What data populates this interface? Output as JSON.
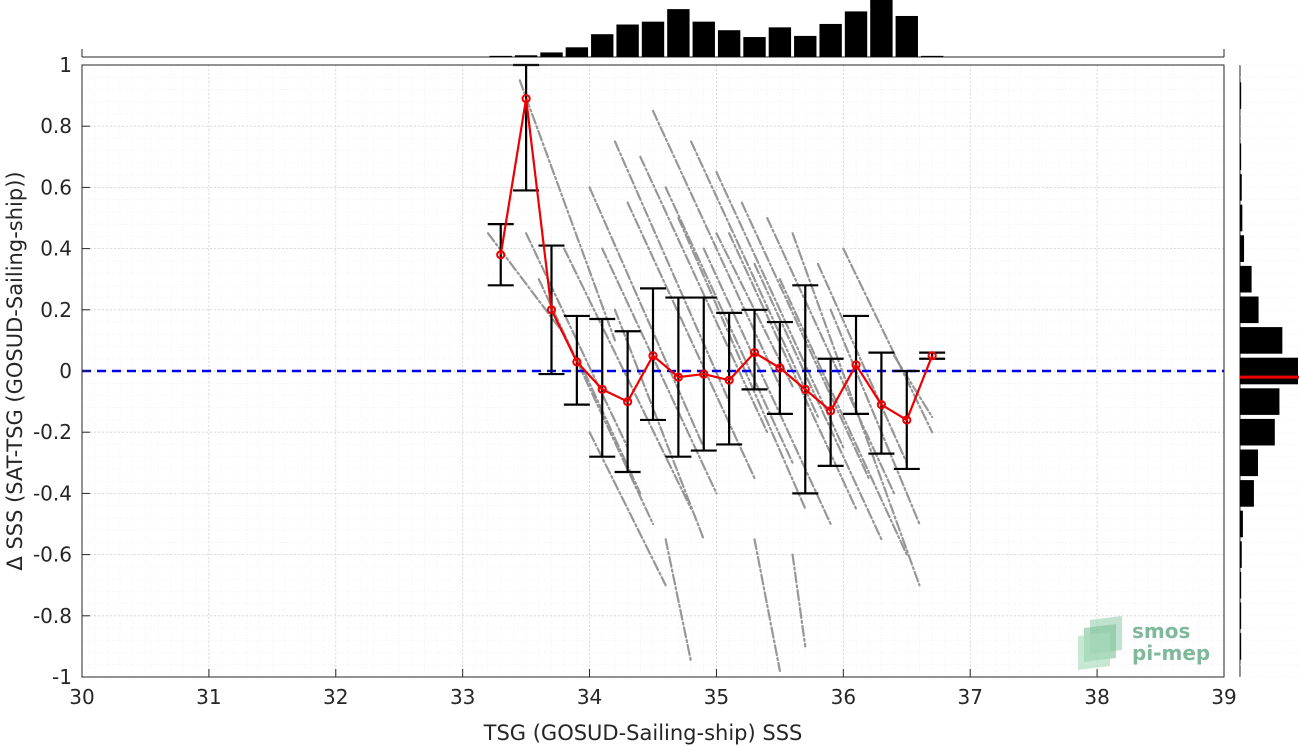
{
  "chart_data": {
    "type": "scatter",
    "xlabel": "TSG (GOSUD-Sailing-ship) SSS",
    "ylabel": "Δ SSS (SAT-TSG (GOSUD-Sailing-ship))",
    "xlim": [
      30,
      39
    ],
    "ylim": [
      -1,
      1
    ],
    "x_ticks": [
      "30",
      "31",
      "32",
      "33",
      "34",
      "35",
      "36",
      "37",
      "38",
      "39"
    ],
    "y_ticks": [
      "1",
      "0.8",
      "0.6",
      "0.4",
      "0.2",
      "0",
      "-0.2",
      "-0.4",
      "-0.6",
      "-0.8",
      "-1"
    ],
    "grid": true,
    "zero_line": {
      "y": 0,
      "style": "dashed",
      "color": "#0000ee"
    },
    "colors": {
      "scatter": "#8c8c8c",
      "mean_line": "#ee0000",
      "error_bars": "#000000",
      "histogram": "#000000",
      "hist_mean": "#ee0000",
      "logo_text": "#7fb89a"
    },
    "binned_mean": {
      "x": [
        33.3,
        33.5,
        33.7,
        33.9,
        34.1,
        34.3,
        34.5,
        34.7,
        34.9,
        35.1,
        35.3,
        35.5,
        35.7,
        35.9,
        36.1,
        36.3,
        36.5,
        36.7
      ],
      "mean": [
        0.38,
        0.89,
        0.2,
        0.03,
        -0.06,
        -0.1,
        0.05,
        -0.02,
        -0.01,
        -0.03,
        0.06,
        0.01,
        -0.06,
        -0.13,
        0.02,
        -0.11,
        -0.16,
        0.05
      ],
      "lower": [
        0.28,
        0.59,
        -0.01,
        -0.11,
        -0.28,
        -0.33,
        -0.16,
        -0.28,
        -0.26,
        -0.24,
        -0.06,
        -0.14,
        -0.4,
        -0.31,
        -0.14,
        -0.27,
        -0.32,
        0.04
      ],
      "upper": [
        0.48,
        1.0,
        0.41,
        0.18,
        0.17,
        0.13,
        0.27,
        0.24,
        0.24,
        0.19,
        0.2,
        0.16,
        0.28,
        0.04,
        0.18,
        0.06,
        0.0,
        0.06
      ]
    },
    "scatter_tracks": [
      {
        "x0": 33.45,
        "y0": 0.95,
        "x1": 34.2,
        "y1": 0.1
      },
      {
        "x0": 33.2,
        "y0": 0.45,
        "x1": 33.8,
        "y1": 0.12
      },
      {
        "x0": 33.5,
        "y0": 0.45,
        "x1": 34.3,
        "y1": -0.25
      },
      {
        "x0": 33.6,
        "y0": 0.3,
        "x1": 34.5,
        "y1": -0.5
      },
      {
        "x0": 33.8,
        "y0": 0.4,
        "x1": 34.8,
        "y1": -0.45
      },
      {
        "x0": 34.0,
        "y0": 0.6,
        "x1": 34.9,
        "y1": -0.25
      },
      {
        "x0": 34.1,
        "y0": 0.4,
        "x1": 35.0,
        "y1": -0.4
      },
      {
        "x0": 34.2,
        "y0": 0.75,
        "x1": 35.1,
        "y1": -0.1
      },
      {
        "x0": 34.3,
        "y0": 0.55,
        "x1": 35.3,
        "y1": -0.35
      },
      {
        "x0": 34.4,
        "y0": 0.7,
        "x1": 35.4,
        "y1": -0.2
      },
      {
        "x0": 34.5,
        "y0": 0.85,
        "x1": 35.5,
        "y1": -0.05
      },
      {
        "x0": 34.6,
        "y0": 0.6,
        "x1": 35.6,
        "y1": -0.3
      },
      {
        "x0": 34.7,
        "y0": 0.5,
        "x1": 35.7,
        "y1": -0.45
      },
      {
        "x0": 34.8,
        "y0": 0.75,
        "x1": 35.8,
        "y1": -0.15
      },
      {
        "x0": 34.9,
        "y0": 0.4,
        "x1": 35.9,
        "y1": -0.5
      },
      {
        "x0": 35.0,
        "y0": 0.65,
        "x1": 36.0,
        "y1": -0.25
      },
      {
        "x0": 35.1,
        "y0": 0.45,
        "x1": 36.1,
        "y1": -0.45
      },
      {
        "x0": 35.2,
        "y0": 0.55,
        "x1": 36.2,
        "y1": -0.35
      },
      {
        "x0": 35.3,
        "y0": 0.35,
        "x1": 36.3,
        "y1": -0.55
      },
      {
        "x0": 35.4,
        "y0": 0.5,
        "x1": 36.4,
        "y1": -0.4
      },
      {
        "x0": 35.5,
        "y0": 0.3,
        "x1": 36.5,
        "y1": -0.6
      },
      {
        "x0": 35.6,
        "y0": 0.45,
        "x1": 36.6,
        "y1": -0.7
      },
      {
        "x0": 35.8,
        "y0": 0.35,
        "x1": 36.5,
        "y1": -0.3
      },
      {
        "x0": 35.9,
        "y0": 0.2,
        "x1": 36.6,
        "y1": -0.5
      },
      {
        "x0": 36.0,
        "y0": 0.4,
        "x1": 36.7,
        "y1": -0.2
      },
      {
        "x0": 33.9,
        "y0": 0.05,
        "x1": 34.4,
        "y1": -0.4
      },
      {
        "x0": 34.0,
        "y0": -0.2,
        "x1": 34.6,
        "y1": -0.7
      },
      {
        "x0": 34.6,
        "y0": -0.55,
        "x1": 34.8,
        "y1": -0.95
      },
      {
        "x0": 35.3,
        "y0": -0.55,
        "x1": 35.5,
        "y1": -0.98
      },
      {
        "x0": 35.6,
        "y0": -0.6,
        "x1": 35.7,
        "y1": -0.9
      },
      {
        "x0": 36.4,
        "y0": 0.05,
        "x1": 36.7,
        "y1": -0.15
      },
      {
        "x0": 35.0,
        "y0": 0.45,
        "x1": 35.6,
        "y1": -0.05
      },
      {
        "x0": 34.2,
        "y0": 0.2,
        "x1": 34.9,
        "y1": -0.55
      }
    ],
    "x_histogram": {
      "centers": [
        33.3,
        33.5,
        33.7,
        33.9,
        34.1,
        34.3,
        34.5,
        34.7,
        34.9,
        35.1,
        35.3,
        35.5,
        35.7,
        35.9,
        36.1,
        36.3,
        36.5,
        36.7
      ],
      "rel_counts": [
        0.02,
        0.03,
        0.08,
        0.17,
        0.4,
        0.57,
        0.62,
        0.84,
        0.62,
        0.47,
        0.35,
        0.52,
        0.37,
        0.58,
        0.8,
        1.0,
        0.72,
        0.02
      ]
    },
    "y_histogram": {
      "centers": [
        0.9,
        0.7,
        0.6,
        0.5,
        0.4,
        0.3,
        0.2,
        0.1,
        0.0,
        -0.1,
        -0.2,
        -0.3,
        -0.4,
        -0.5,
        -0.6,
        -0.7,
        -0.8,
        -0.9
      ],
      "rel_counts": [
        0.02,
        0.02,
        0.03,
        0.04,
        0.07,
        0.2,
        0.32,
        0.73,
        1.0,
        0.68,
        0.6,
        0.31,
        0.24,
        0.05,
        0.03,
        0.02,
        0.02,
        0.02
      ],
      "mean_marker": -0.02
    },
    "logo": {
      "line1": "smos",
      "line2": "pi-mep"
    }
  }
}
